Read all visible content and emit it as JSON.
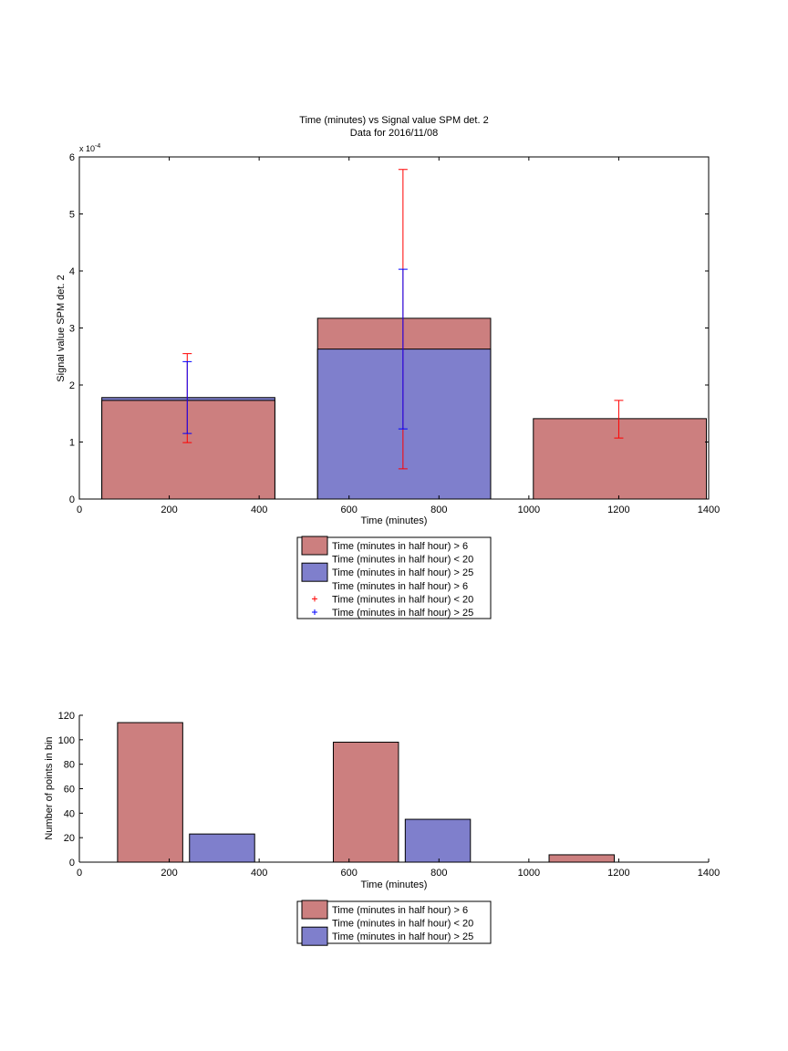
{
  "colors": {
    "red_bar": "#cc7f7f",
    "blue_bar": "#7f7fcc",
    "red_err": "#ff0000",
    "blue_err": "#0000ff",
    "axis": "#000000"
  },
  "chart_data": [
    {
      "type": "bar",
      "title": "Time (minutes) vs Signal value SPM det. 2",
      "subtitle": "Data for 2016/11/08",
      "xlabel": "Time (minutes)",
      "ylabel": "Signal value SPM det. 2",
      "y_exponent_label": "x 10",
      "y_exponent_power": "-4",
      "xlim": [
        0,
        1400
      ],
      "ylim": [
        0,
        6
      ],
      "xticks": [
        "0",
        "200",
        "400",
        "600",
        "800",
        "1000",
        "1200",
        "1400"
      ],
      "yticks": [
        "0",
        "1",
        "2",
        "3",
        "4",
        "5",
        "6"
      ],
      "bars": [
        {
          "series": "red",
          "x0": 50,
          "x1": 435,
          "value": 1.73
        },
        {
          "series": "blue",
          "x0": 50,
          "x1": 435,
          "value": 1.78
        },
        {
          "series": "red",
          "x0": 530,
          "x1": 915,
          "value": 3.17
        },
        {
          "series": "blue",
          "x0": 530,
          "x1": 915,
          "value": 2.63
        },
        {
          "series": "red",
          "x0": 1010,
          "x1": 1395,
          "value": 1.41
        },
        {
          "series": "blue",
          "x0": 1010,
          "x1": 1395,
          "value": 0.0
        }
      ],
      "errorbars": [
        {
          "series": "red",
          "x": 240,
          "low": 0.99,
          "high": 2.55
        },
        {
          "series": "blue",
          "x": 240,
          "low": 1.15,
          "high": 2.41
        },
        {
          "series": "red",
          "x": 720,
          "low": 0.53,
          "high": 5.78
        },
        {
          "series": "blue",
          "x": 720,
          "low": 1.23,
          "high": 4.03
        },
        {
          "series": "red",
          "x": 1200,
          "low": 1.07,
          "high": 1.73
        },
        {
          "series": "blue",
          "x": 1200,
          "low": 0.0,
          "high": 0.0
        }
      ],
      "legend": [
        {
          "kind": "patch",
          "series": "red",
          "label": "Time (minutes in half hour) > 6"
        },
        {
          "kind": "text",
          "label": "Time (minutes in half hour) < 20"
        },
        {
          "kind": "patch",
          "series": "blue",
          "label": "Time (minutes in half hour) > 25"
        },
        {
          "kind": "text",
          "label": "Time (minutes in half hour) > 6"
        },
        {
          "kind": "marker",
          "series": "red",
          "label": "Time (minutes in half hour) < 20"
        },
        {
          "kind": "marker",
          "series": "blue",
          "label": "Time (minutes in half hour) > 25"
        }
      ]
    },
    {
      "type": "bar",
      "xlabel": "Time (minutes)",
      "ylabel": "Number of points in bin",
      "xlim": [
        0,
        1400
      ],
      "ylim": [
        0,
        120
      ],
      "xticks": [
        "0",
        "200",
        "400",
        "600",
        "800",
        "1000",
        "1200",
        "1400"
      ],
      "yticks": [
        "0",
        "20",
        "40",
        "60",
        "80",
        "100",
        "120"
      ],
      "bars": [
        {
          "series": "red",
          "x0": 85,
          "x1": 230,
          "value": 114
        },
        {
          "series": "blue",
          "x0": 245,
          "x1": 390,
          "value": 23
        },
        {
          "series": "red",
          "x0": 565,
          "x1": 710,
          "value": 98
        },
        {
          "series": "blue",
          "x0": 725,
          "x1": 870,
          "value": 35
        },
        {
          "series": "red",
          "x0": 1045,
          "x1": 1190,
          "value": 6
        }
      ],
      "legend": [
        {
          "kind": "patch",
          "series": "red",
          "label": "Time (minutes in half hour) > 6"
        },
        {
          "kind": "text",
          "label": "Time (minutes in half hour) < 20"
        },
        {
          "kind": "patch",
          "series": "blue",
          "label": "Time (minutes in half hour) > 25"
        }
      ]
    }
  ]
}
